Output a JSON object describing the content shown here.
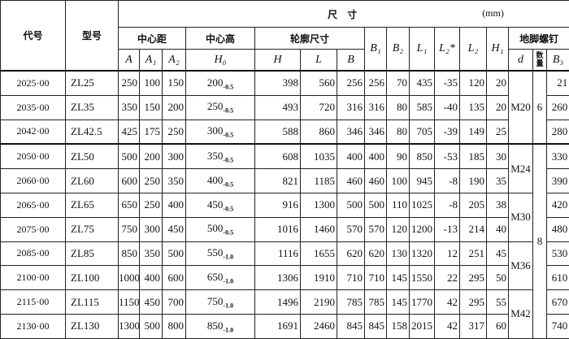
{
  "header": {
    "code": "代号",
    "model": "型号",
    "dimension": "尺 寸",
    "unit": "(mm)",
    "center_distance": "中心距",
    "center_height": "中心高",
    "outline": "轮廓尺寸",
    "anchor_bolt": "地脚螺钉",
    "columns": [
      "A",
      "A₁",
      "A₂",
      "H₀",
      "H",
      "L",
      "B",
      "B₁",
      "B₂",
      "L₁",
      "L₂*",
      "L₂",
      "H₁",
      "d",
      "数量",
      "B₃"
    ]
  },
  "rows": [
    [
      "2025·00",
      "ZL25",
      250,
      100,
      150,
      {
        "base": "200",
        "tol": "-0.5"
      },
      398,
      560,
      256,
      256,
      70,
      435,
      -35,
      120,
      20,
      21
    ],
    [
      "2035·00",
      "ZL35",
      350,
      150,
      200,
      {
        "base": "250",
        "tol": "-0.5"
      },
      493,
      720,
      316,
      316,
      80,
      585,
      -40,
      135,
      20,
      260
    ],
    [
      "2042·00",
      "ZL42.5",
      425,
      175,
      250,
      {
        "base": "300",
        "tol": "-0.5"
      },
      588,
      860,
      346,
      346,
      80,
      705,
      -39,
      149,
      25,
      280
    ],
    [
      "2050·00",
      "ZL50",
      500,
      200,
      300,
      {
        "base": "350",
        "tol": "-0.5"
      },
      608,
      1035,
      400,
      400,
      90,
      850,
      -53,
      185,
      30,
      330
    ],
    [
      "2060·00",
      "ZL60",
      600,
      250,
      350,
      {
        "base": "400",
        "tol": "-0.5"
      },
      821,
      1185,
      460,
      460,
      100,
      945,
      -8,
      190,
      35,
      390
    ],
    [
      "2065·00",
      "ZL65",
      650,
      250,
      400,
      {
        "base": "450",
        "tol": "-0.5"
      },
      916,
      1300,
      500,
      500,
      110,
      1025,
      -8,
      205,
      38,
      420
    ],
    [
      "2075·00",
      "ZL75",
      750,
      300,
      450,
      {
        "base": "500",
        "tol": "-0.5"
      },
      1016,
      1460,
      570,
      570,
      120,
      1200,
      -13,
      214,
      40,
      480
    ],
    [
      "2085·00",
      "ZL85",
      850,
      350,
      500,
      {
        "base": "550",
        "tol": "-1.0"
      },
      1116,
      1655,
      620,
      620,
      130,
      1320,
      12,
      251,
      45,
      530
    ],
    [
      "2100·00",
      "ZL100",
      1000,
      400,
      600,
      {
        "base": "650",
        "tol": "-1.0"
      },
      1306,
      1910,
      710,
      710,
      145,
      1550,
      22,
      295,
      50,
      610
    ],
    [
      "2115·00",
      "ZL115",
      1150,
      450,
      700,
      {
        "base": "750",
        "tol": "-1.0"
      },
      1496,
      2190,
      785,
      785,
      145,
      1770,
      42,
      295,
      55,
      670
    ],
    [
      "2130·00",
      "ZL130",
      1300,
      500,
      800,
      {
        "base": "850",
        "tol": "-1.0"
      },
      1691,
      2460,
      845,
      845,
      158,
      2015,
      42,
      317,
      60,
      740
    ]
  ],
  "anchor_d": [
    {
      "text": "M20",
      "span": 3
    },
    {
      "text": "M24",
      "span": 2
    },
    {
      "text": "M30",
      "span": 2
    },
    {
      "text": "M36",
      "span": 2
    },
    {
      "text": "M42",
      "span": 2
    }
  ],
  "anchor_qty": [
    {
      "text": "6",
      "span": 3
    },
    {
      "text": "8",
      "span": 8
    }
  ]
}
